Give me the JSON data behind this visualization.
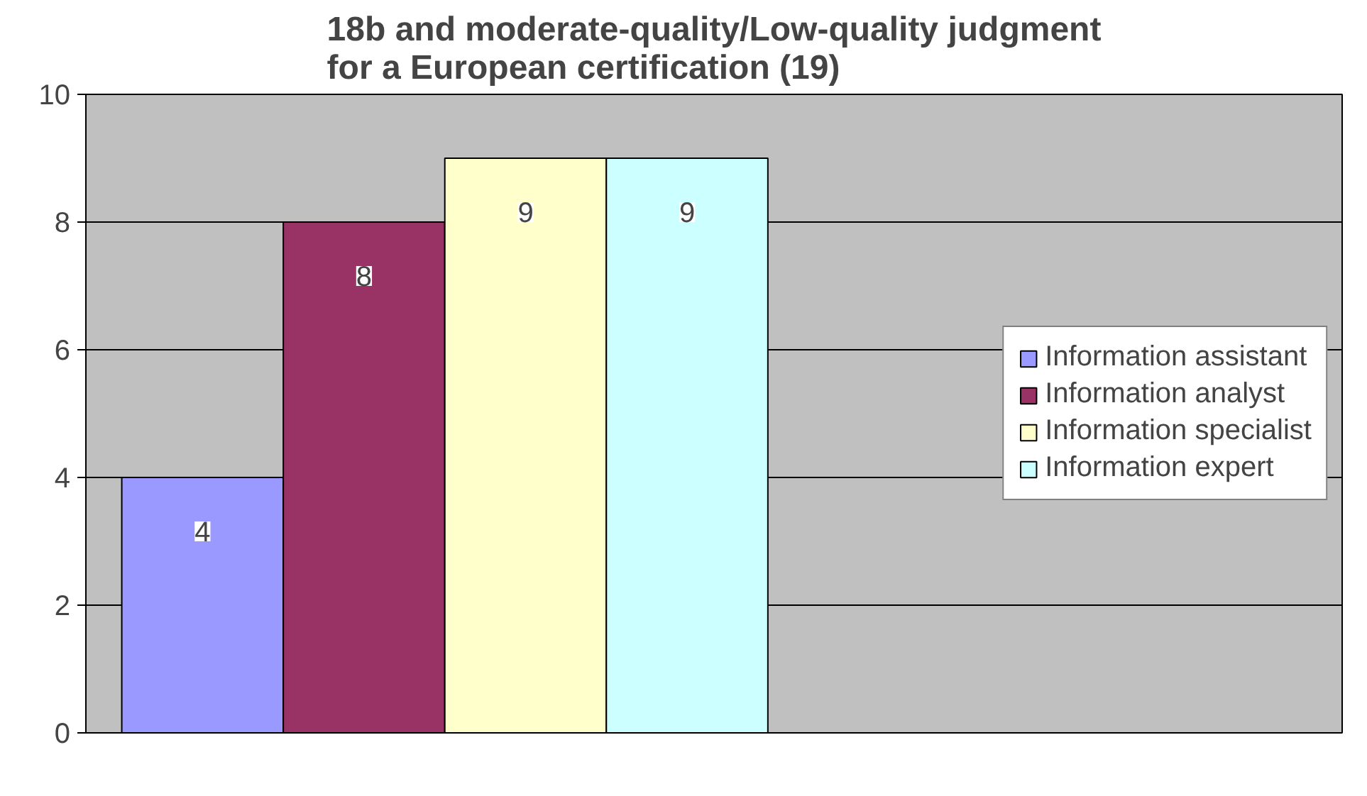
{
  "chart_data": {
    "type": "bar",
    "title": "18b and moderate-quality/Low-quality judgment for a European certification (19)",
    "categories": [
      null
    ],
    "series": [
      {
        "name": "Information assistant",
        "color": "#9999ff",
        "values": [
          4
        ]
      },
      {
        "name": "Information analyst",
        "color": "#993366",
        "values": [
          8
        ]
      },
      {
        "name": "Information specialist",
        "color": "#ffffcc",
        "values": [
          9
        ]
      },
      {
        "name": "Information expert",
        "color": "#ccffff",
        "values": [
          9
        ]
      }
    ],
    "ylim": [
      0,
      10
    ],
    "yticks": [
      0,
      2,
      4,
      6,
      8,
      10
    ],
    "grid": "y",
    "legend": "right",
    "data_labels": true
  }
}
